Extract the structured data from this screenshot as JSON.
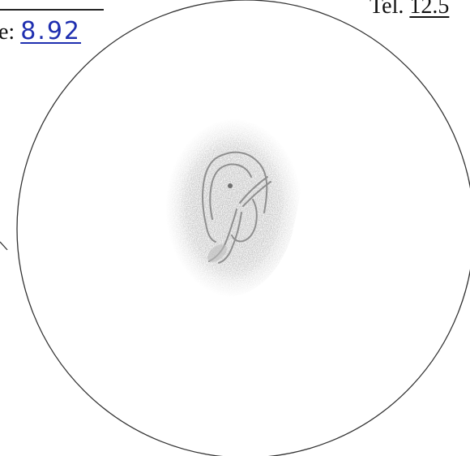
{
  "header": {
    "label_left_fragment": "e:",
    "value_left_handwritten": "8.92",
    "label_right_fragment": "Tel.",
    "value_right_fragment": "12.5"
  },
  "colors": {
    "paper": "#ffffff",
    "pencil": "#8f8f8f",
    "ink_blue": "#1f2fb0",
    "circle": "#333333"
  },
  "icons": {
    "eyepiece_field": "circle-outline",
    "nebula": "pencil-shading"
  }
}
